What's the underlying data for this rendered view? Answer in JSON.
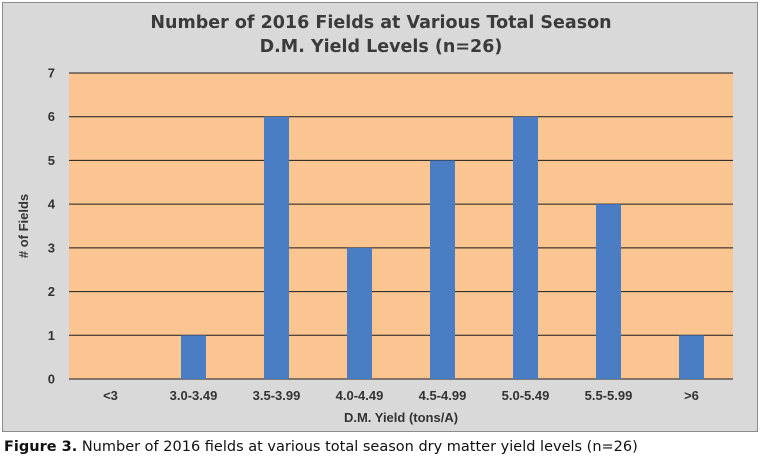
{
  "chart_data": {
    "type": "bar",
    "title_lines": [
      "Number of 2016 Fields at Various Total Season",
      "D.M. Yield Levels (n=26)"
    ],
    "xlabel": "D.M. Yield (tons/A)",
    "ylabel": "# of Fields",
    "categories": [
      "<3",
      "3.0-3.49",
      "3.5-3.99",
      "4.0-4.49",
      "4.5-4.99",
      "5.0-5.49",
      "5.5-5.99",
      ">6"
    ],
    "values": [
      0,
      1,
      6,
      3,
      5,
      6,
      4,
      1
    ],
    "ylim": [
      0,
      7
    ],
    "yticks": [
      "0",
      "1",
      "2",
      "3",
      "4",
      "5",
      "6",
      "7"
    ],
    "grid": true,
    "legend": "none",
    "colors": {
      "bar": "#4a7dc4",
      "plot_area": "#fac591",
      "chart_area": "#d9d9d9",
      "gridline": "#1a1a1a"
    }
  },
  "caption": {
    "label": "Figure 3.",
    "text": "Number of 2016 fields at various total season dry matter yield levels (n=26)"
  }
}
